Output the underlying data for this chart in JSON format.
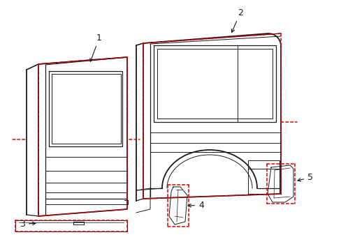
{
  "background_color": "#ffffff",
  "line_color": "#1a1a1a",
  "red_dash_color": "#dd0000",
  "label_color": "#000000",
  "figsize": [
    4.89,
    3.6
  ],
  "dpi": 100
}
